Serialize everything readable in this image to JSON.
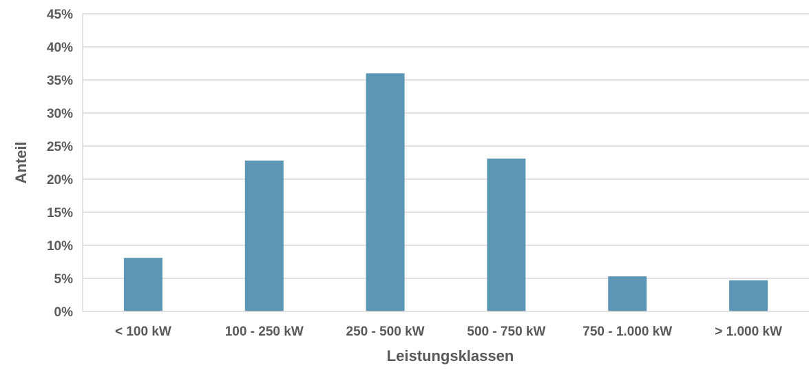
{
  "chart_data": {
    "type": "bar",
    "categories": [
      "< 100 kW",
      "100 - 250 kW",
      "250 - 500 kW",
      "500 - 750 kW",
      "750 - 1.000 kW",
      "> 1.000 kW"
    ],
    "series": [
      {
        "values": [
          8.1,
          22.8,
          36.0,
          23.1,
          5.3,
          4.7
        ],
        "color": "#5b96b4"
      }
    ],
    "title": "",
    "xlabel": "Leistungsklassen",
    "ylabel": "Anteil",
    "ylim": [
      0,
      45
    ],
    "yticks": [
      0,
      5,
      10,
      15,
      20,
      25,
      30,
      35,
      40,
      45
    ],
    "ytick_labels": [
      "0%",
      "5%",
      "10%",
      "15%",
      "20%",
      "25%",
      "30%",
      "35%",
      "40%",
      "45%"
    ],
    "grid": true,
    "gridline_color": "#d9d9d9",
    "legend": "none"
  }
}
